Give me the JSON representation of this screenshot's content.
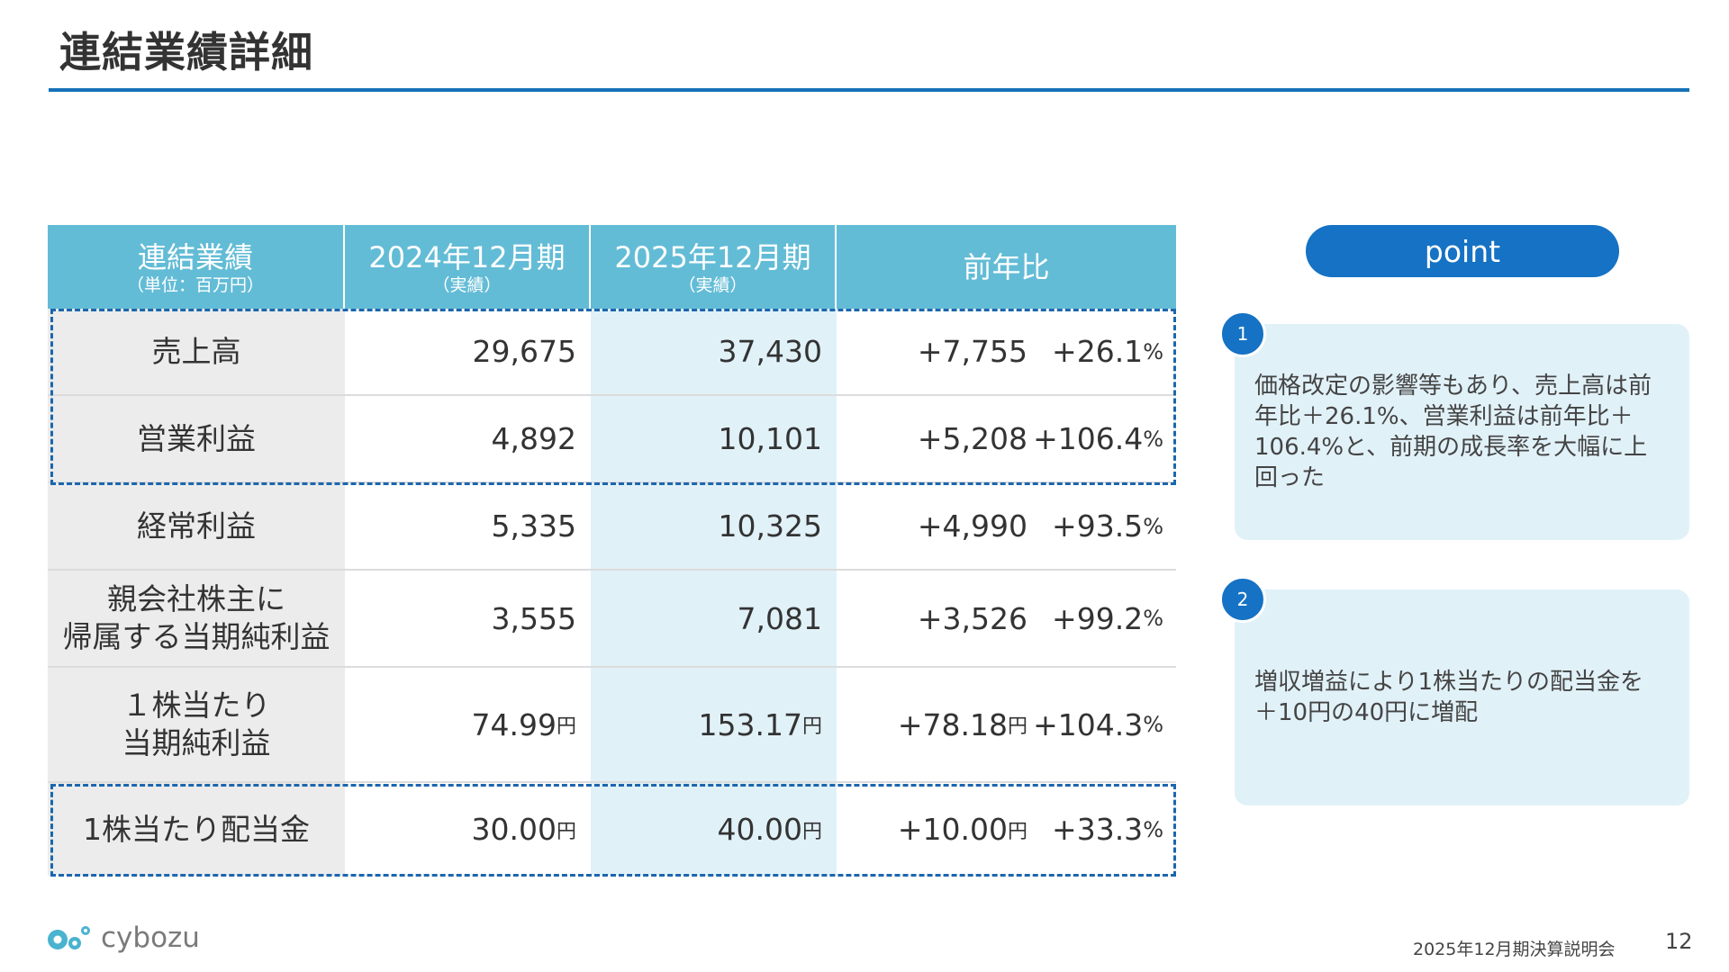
{
  "slide": {
    "title": "連結業績詳細"
  },
  "table": {
    "headers": {
      "label": {
        "main": "連結業績",
        "sub": "（単位：百万円）"
      },
      "fy2024": {
        "main": "2024年12月期",
        "sub": "（実績）"
      },
      "fy2025": {
        "main": "2025年12月期",
        "sub": "（実績）"
      },
      "yoy": {
        "main": "前年比"
      }
    },
    "rows": [
      {
        "label": [
          "売上高"
        ],
        "v2024": "29,675",
        "v2025": "37,430",
        "diff": "+7,755",
        "pct": "+26.1",
        "pct_unit": "%"
      },
      {
        "label": [
          "営業利益"
        ],
        "v2024": "4,892",
        "v2025": "10,101",
        "diff": "+5,208",
        "pct": "+106.4",
        "pct_unit": "%"
      },
      {
        "label": [
          "経常利益"
        ],
        "v2024": "5,335",
        "v2025": "10,325",
        "diff": "+4,990",
        "pct": "+93.5",
        "pct_unit": "%"
      },
      {
        "label": [
          "親会社株主に",
          "帰属する当期純利益"
        ],
        "v2024": "3,555",
        "v2025": "7,081",
        "diff": "+3,526",
        "pct": "+99.2",
        "pct_unit": "%"
      },
      {
        "label": [
          "１株当たり",
          "当期純利益"
        ],
        "v2024": "74.99",
        "v2025": "153.17",
        "diff": "+78.18",
        "pct": "+104.3",
        "pct_unit": "%",
        "unit": "円"
      },
      {
        "label": [
          "1株当たり配当金"
        ],
        "v2024": "30.00",
        "v2025": "40.00",
        "diff": "+10.00",
        "pct": "+33.3",
        "pct_unit": "%",
        "unit": "円"
      }
    ]
  },
  "points": {
    "title": "point",
    "items": [
      {
        "number": "1",
        "text": "価格改定の影響等もあり、売上高は前年比＋26.1%、営業利益は前年比＋106.4%と、前期の成長率を大幅に上回った"
      },
      {
        "number": "2",
        "text": "増収増益により1株当たりの配当金を＋10円の40円に増配"
      }
    ]
  },
  "footer": {
    "logo_text": "cybozu",
    "event": "2025年12月期決算説明会",
    "page": "12"
  },
  "colors": {
    "accent": "#1572b8",
    "header_bg": "#63bcd6",
    "highlight_col": "#e1f1f8",
    "label_col": "#ececec",
    "dash": "#1c66ad"
  }
}
